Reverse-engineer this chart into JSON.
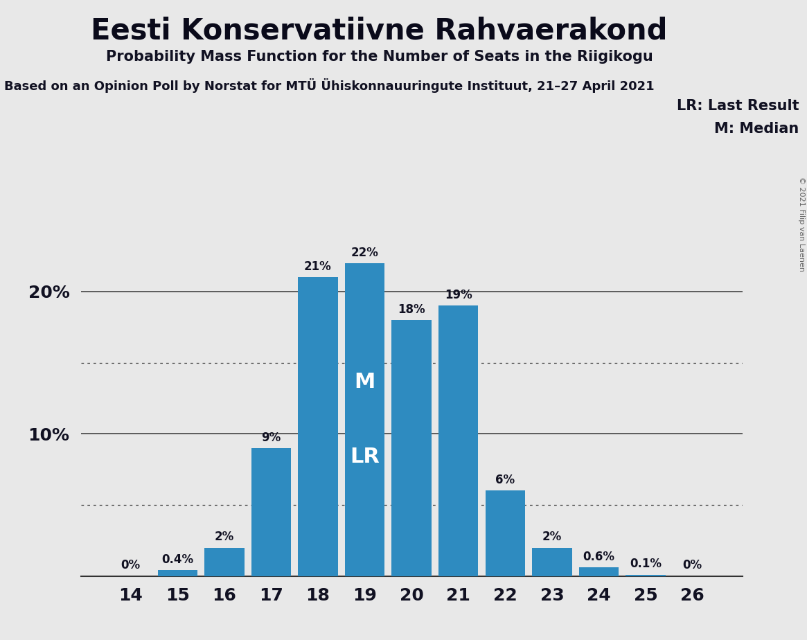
{
  "title": "Eesti Konservatiivne Rahvaerakond",
  "subtitle": "Probability Mass Function for the Number of Seats in the Riigikogu",
  "source": "Based on an Opinion Poll by Norstat for MTÜ Ühiskonnauuringute Instituut, 21–27 April 2021",
  "copyright": "© 2021 Filip van Laenen",
  "categories": [
    14,
    15,
    16,
    17,
    18,
    19,
    20,
    21,
    22,
    23,
    24,
    25,
    26
  ],
  "values": [
    0.0,
    0.4,
    2.0,
    9.0,
    21.0,
    22.0,
    18.0,
    19.0,
    6.0,
    2.0,
    0.6,
    0.1,
    0.0
  ],
  "labels": [
    "0%",
    "0.4%",
    "2%",
    "9%",
    "21%",
    "22%",
    "18%",
    "19%",
    "6%",
    "2%",
    "0.6%",
    "0.1%",
    "0%"
  ],
  "bar_color": "#2E8BC0",
  "background_color": "#E8E8E8",
  "median_seat": 19,
  "last_result_seat": 19,
  "median_label": "M",
  "last_result_label": "LR",
  "legend_lr": "LR: Last Result",
  "legend_m": "M: Median",
  "ylim": [
    0,
    27
  ],
  "solid_lines": [
    10,
    20
  ],
  "dotted_lines": [
    5,
    15
  ],
  "ytick_positions": [
    10,
    20
  ],
  "ytick_labels": [
    "10%",
    "20%"
  ]
}
